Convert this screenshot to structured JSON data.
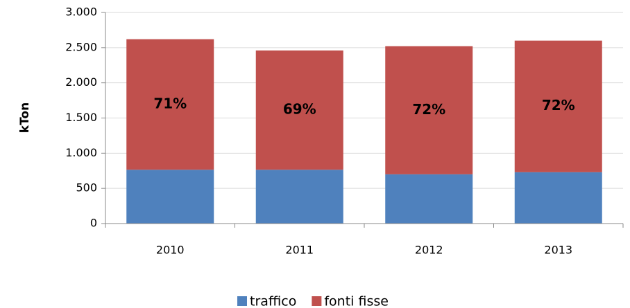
{
  "chart_data": {
    "type": "stacked_bar",
    "y_label": "kTon",
    "categories": [
      "2010",
      "2011",
      "2012",
      "2013"
    ],
    "series": [
      {
        "name": "traffico",
        "color": "#4f81bd",
        "values": [
          765,
          765,
          700,
          730
        ]
      },
      {
        "name": "fonti fisse",
        "color": "#c0504d",
        "values": [
          1855,
          1695,
          1820,
          1870
        ]
      }
    ],
    "annotations": [
      {
        "value": 71,
        "label": "71%"
      },
      {
        "value": 69,
        "label": "69%"
      },
      {
        "value": 72,
        "label": "72%"
      },
      {
        "value": 72,
        "label": "72%"
      }
    ],
    "ylim": [
      0,
      3000
    ],
    "yticks": [
      0,
      500,
      {
        "value": 1000,
        "label": "1.000"
      },
      {
        "value": 1500,
        "label": "1.500"
      },
      {
        "value": 2000,
        "label": "2.000"
      },
      {
        "value": 2500,
        "label": "2.500"
      },
      {
        "value": 3000,
        "label": "3.000"
      }
    ],
    "grid": true,
    "legend": "bottom"
  }
}
